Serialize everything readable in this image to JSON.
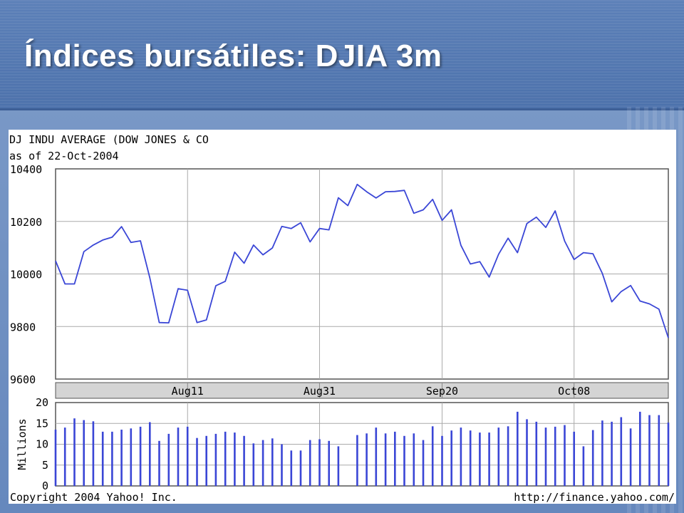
{
  "slide": {
    "title": "Índices bursátiles: DJIA 3m"
  },
  "chart_data": [
    {
      "type": "line",
      "title": "DJ INDU AVERAGE (DOW JONES & CO",
      "subtitle": "as of 22-Oct-2004",
      "x": [
        "2004-07-22",
        "2004-07-23",
        "2004-07-26",
        "2004-07-27",
        "2004-07-28",
        "2004-07-29",
        "2004-07-30",
        "2004-08-02",
        "2004-08-03",
        "2004-08-04",
        "2004-08-05",
        "2004-08-06",
        "2004-08-09",
        "2004-08-10",
        "2004-08-11",
        "2004-08-12",
        "2004-08-13",
        "2004-08-16",
        "2004-08-17",
        "2004-08-18",
        "2004-08-19",
        "2004-08-20",
        "2004-08-23",
        "2004-08-24",
        "2004-08-25",
        "2004-08-26",
        "2004-08-27",
        "2004-08-30",
        "2004-08-31",
        "2004-09-01",
        "2004-09-02",
        "2004-09-03",
        "2004-09-07",
        "2004-09-08",
        "2004-09-09",
        "2004-09-10",
        "2004-09-13",
        "2004-09-14",
        "2004-09-15",
        "2004-09-16",
        "2004-09-17",
        "2004-09-20",
        "2004-09-21",
        "2004-09-22",
        "2004-09-23",
        "2004-09-24",
        "2004-09-27",
        "2004-09-28",
        "2004-09-29",
        "2004-09-30",
        "2004-10-01",
        "2004-10-04",
        "2004-10-05",
        "2004-10-06",
        "2004-10-07",
        "2004-10-08",
        "2004-10-11",
        "2004-10-12",
        "2004-10-13",
        "2004-10-14",
        "2004-10-15",
        "2004-10-18",
        "2004-10-19",
        "2004-10-20",
        "2004-10-21",
        "2004-10-22"
      ],
      "values": [
        10050,
        9962,
        9962,
        10085,
        10110,
        10129,
        10140,
        10180,
        10120,
        10126,
        9985,
        9815,
        9814,
        9944,
        9938,
        9815,
        9825,
        9955,
        9972,
        10083,
        10041,
        10110,
        10073,
        10099,
        10181,
        10173,
        10195,
        10122,
        10173,
        10168,
        10290,
        10260,
        10341,
        10313,
        10289,
        10313,
        10314,
        10318,
        10231,
        10244,
        10284,
        10204,
        10244,
        10109,
        10038,
        10047,
        9988,
        10075,
        10136,
        10081,
        10192,
        10216,
        10177,
        10240,
        10125,
        10055,
        10081,
        10077,
        10002,
        9894,
        9933,
        9956,
        9897,
        9886,
        9866,
        9757
      ],
      "xticks": [
        "Aug11",
        "Aug31",
        "Sep20",
        "Oct08"
      ],
      "yticks": [
        9600,
        9800,
        10000,
        10200,
        10400
      ],
      "ylim": [
        9600,
        10400
      ],
      "color": "#3a46d6",
      "grid": true
    },
    {
      "type": "bar",
      "ylabel": "Millions",
      "x": [
        "2004-07-22",
        "2004-07-23",
        "2004-07-26",
        "2004-07-27",
        "2004-07-28",
        "2004-07-29",
        "2004-07-30",
        "2004-08-02",
        "2004-08-03",
        "2004-08-04",
        "2004-08-05",
        "2004-08-06",
        "2004-08-09",
        "2004-08-10",
        "2004-08-11",
        "2004-08-12",
        "2004-08-13",
        "2004-08-16",
        "2004-08-17",
        "2004-08-18",
        "2004-08-19",
        "2004-08-20",
        "2004-08-23",
        "2004-08-24",
        "2004-08-25",
        "2004-08-26",
        "2004-08-27",
        "2004-08-30",
        "2004-08-31",
        "2004-09-01",
        "2004-09-02",
        "2004-09-03",
        "2004-09-07",
        "2004-09-08",
        "2004-09-09",
        "2004-09-10",
        "2004-09-13",
        "2004-09-14",
        "2004-09-15",
        "2004-09-16",
        "2004-09-17",
        "2004-09-20",
        "2004-09-21",
        "2004-09-22",
        "2004-09-23",
        "2004-09-24",
        "2004-09-27",
        "2004-09-28",
        "2004-09-29",
        "2004-09-30",
        "2004-10-01",
        "2004-10-04",
        "2004-10-05",
        "2004-10-06",
        "2004-10-07",
        "2004-10-08",
        "2004-10-11",
        "2004-10-12",
        "2004-10-13",
        "2004-10-14",
        "2004-10-15",
        "2004-10-18",
        "2004-10-19",
        "2004-10-20",
        "2004-10-21",
        "2004-10-22"
      ],
      "values": [
        13.5,
        14.0,
        16.2,
        15.8,
        15.5,
        13.0,
        13.0,
        13.5,
        13.8,
        14.2,
        15.3,
        10.8,
        12.5,
        14.0,
        14.2,
        11.5,
        12.0,
        12.5,
        13.0,
        12.8,
        12.0,
        10.2,
        11.0,
        11.4,
        10.0,
        8.5,
        8.5,
        11.0,
        11.2,
        10.8,
        9.5,
        null,
        12.2,
        12.6,
        14.0,
        12.6,
        13.0,
        12.0,
        12.6,
        11.0,
        14.3,
        12.0,
        13.3,
        14.0,
        13.3,
        12.8,
        12.8,
        14.0,
        14.3,
        17.8,
        16.0,
        15.4,
        14.0,
        14.2,
        14.6,
        13.0,
        9.5,
        13.4,
        15.7,
        15.4,
        16.5,
        13.8,
        17.8,
        17.0,
        17.0,
        15.2
      ],
      "yticks": [
        0,
        5,
        10,
        15,
        20
      ],
      "ylim": [
        0,
        20
      ],
      "color": "#3a46d6",
      "grid": true
    }
  ],
  "footer": {
    "copyright": "Copyright 2004 Yahoo! Inc.",
    "url": "http://finance.yahoo.com/"
  }
}
